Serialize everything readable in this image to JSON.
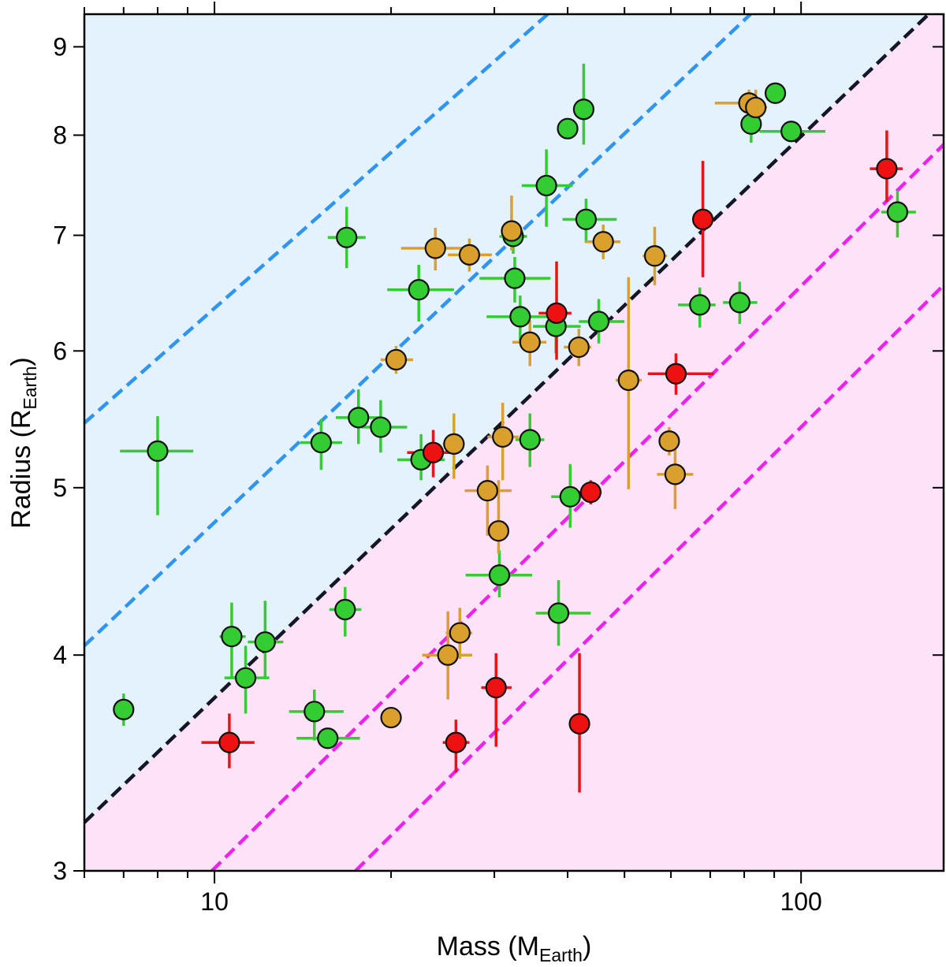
{
  "chart_data": {
    "type": "scatter",
    "title": "",
    "xlabel": "Mass (M",
    "xlabel_sub": "Earth",
    "xlabel_close": ")",
    "ylabel": "Radius (R",
    "ylabel_sub": "Earth",
    "ylabel_close": ")",
    "xscale": "log",
    "yscale": "log",
    "xlim": [
      6,
      175
    ],
    "ylim": [
      3,
      9.4
    ],
    "x_ticks": [
      10,
      100
    ],
    "x_tick_labels": [
      "10",
      "100"
    ],
    "y_ticks": [
      3,
      4,
      5,
      6,
      7,
      8,
      9
    ],
    "y_tick_labels": [
      "3",
      "4",
      "5",
      "6",
      "7",
      "8",
      "9"
    ],
    "grid": false,
    "legend": null,
    "colors": {
      "green": "#33cc33",
      "gold": "#d9a02c",
      "red": "#ee1111",
      "blue_region": "#e3f2fc",
      "pink_region": "#fde2f8",
      "blue_line": "#2f95f0",
      "magenta_line": "#ee22ee",
      "black_line": "#15152a"
    },
    "regions": [
      {
        "name": "upper",
        "color": "blue_region",
        "boundary": "upper-black-line"
      },
      {
        "name": "lower",
        "color": "pink_region",
        "boundary": "below-black-line"
      }
    ],
    "reference_lines": [
      {
        "name": "blue-line-upper",
        "color": "blue_line",
        "points": [
          [
            6,
            5.45
          ],
          [
            37,
            9.4
          ]
        ]
      },
      {
        "name": "blue-line-lower",
        "color": "blue_line",
        "points": [
          [
            6,
            4.05
          ],
          [
            82,
            9.4
          ]
        ]
      },
      {
        "name": "black-line",
        "color": "black_line",
        "points": [
          [
            6,
            3.2
          ],
          [
            165,
            9.4
          ]
        ]
      },
      {
        "name": "magenta-line-upper",
        "color": "magenta_line",
        "points": [
          [
            9.9,
            3.0
          ],
          [
            175,
            7.9
          ]
        ]
      },
      {
        "name": "magenta-line-lower",
        "color": "magenta_line",
        "points": [
          [
            17.4,
            3.0
          ],
          [
            175,
            6.55
          ]
        ]
      }
    ],
    "series": [
      {
        "name": "green",
        "color": "green",
        "points": [
          {
            "x": 7.0,
            "y": 3.72,
            "xlo": 7.0,
            "xhi": 7.0,
            "ylo": 3.64,
            "yhi": 3.8
          },
          {
            "x": 8.0,
            "y": 5.25,
            "xlo": 6.9,
            "xhi": 9.2,
            "ylo": 4.82,
            "yhi": 5.5
          },
          {
            "x": 10.7,
            "y": 4.1,
            "xlo": 10.2,
            "xhi": 11.3,
            "ylo": 3.88,
            "yhi": 4.29
          },
          {
            "x": 11.3,
            "y": 3.88,
            "xlo": 10.4,
            "xhi": 12.4,
            "ylo": 3.7,
            "yhi": 4.05
          },
          {
            "x": 12.2,
            "y": 4.07,
            "xlo": 11.4,
            "xhi": 13.1,
            "ylo": 3.88,
            "yhi": 4.3
          },
          {
            "x": 14.8,
            "y": 3.71,
            "xlo": 13.4,
            "xhi": 16.6,
            "ylo": 3.57,
            "yhi": 3.82
          },
          {
            "x": 15.2,
            "y": 5.31,
            "xlo": 14.0,
            "xhi": 16.5,
            "ylo": 5.12,
            "yhi": 5.48
          },
          {
            "x": 15.6,
            "y": 3.58,
            "xlo": 13.8,
            "xhi": 17.7,
            "ylo": 3.58,
            "yhi": 3.58
          },
          {
            "x": 16.7,
            "y": 4.25,
            "xlo": 15.7,
            "xhi": 17.8,
            "ylo": 4.1,
            "yhi": 4.38
          },
          {
            "x": 16.8,
            "y": 6.98,
            "xlo": 15.6,
            "xhi": 18.1,
            "ylo": 6.7,
            "yhi": 7.27
          },
          {
            "x": 17.6,
            "y": 5.49,
            "xlo": 16.1,
            "xhi": 19.2,
            "ylo": 5.3,
            "yhi": 5.7
          },
          {
            "x": 19.2,
            "y": 5.42,
            "xlo": 17.8,
            "xhi": 21.3,
            "ylo": 5.24,
            "yhi": 5.62
          },
          {
            "x": 22.3,
            "y": 6.51,
            "xlo": 19.7,
            "xhi": 25.6,
            "ylo": 6.24,
            "yhi": 6.73
          },
          {
            "x": 22.5,
            "y": 5.19,
            "xlo": 20.5,
            "xhi": 24.7,
            "ylo": 5.05,
            "yhi": 5.37
          },
          {
            "x": 30.6,
            "y": 4.45,
            "xlo": 26.8,
            "xhi": 34.8,
            "ylo": 4.32,
            "yhi": 4.6
          },
          {
            "x": 32.3,
            "y": 6.99,
            "xlo": 30.6,
            "xhi": 34.1,
            "ylo": 6.83,
            "yhi": 7.14
          },
          {
            "x": 32.5,
            "y": 6.61,
            "xlo": 28.3,
            "xhi": 37.4,
            "ylo": 6.4,
            "yhi": 6.8
          },
          {
            "x": 33.2,
            "y": 6.28,
            "xlo": 29.1,
            "xhi": 37.6,
            "ylo": 6.08,
            "yhi": 6.46
          },
          {
            "x": 34.5,
            "y": 5.33,
            "xlo": 32.6,
            "xhi": 36.5,
            "ylo": 5.14,
            "yhi": 5.52
          },
          {
            "x": 36.8,
            "y": 7.48,
            "xlo": 33.4,
            "xhi": 40.8,
            "ylo": 7.08,
            "yhi": 7.85
          },
          {
            "x": 38.2,
            "y": 6.2,
            "xlo": 34.9,
            "xhi": 42.1,
            "ylo": 5.98,
            "yhi": 6.38
          },
          {
            "x": 38.6,
            "y": 4.23,
            "xlo": 35.3,
            "xhi": 43.8,
            "ylo": 4.05,
            "yhi": 4.42
          },
          {
            "x": 40.0,
            "y": 8.07,
            "xlo": 40.0,
            "xhi": 40.0,
            "ylo": 8.07,
            "yhi": 8.07
          },
          {
            "x": 40.4,
            "y": 4.94,
            "xlo": 37.5,
            "xhi": 43.6,
            "ylo": 4.74,
            "yhi": 5.16
          },
          {
            "x": 42.6,
            "y": 8.28,
            "xlo": 42.6,
            "xhi": 42.6,
            "ylo": 7.9,
            "yhi": 8.8
          },
          {
            "x": 43.0,
            "y": 7.15,
            "xlo": 39.2,
            "xhi": 48.5,
            "ylo": 6.93,
            "yhi": 7.35
          },
          {
            "x": 45.2,
            "y": 6.24,
            "xlo": 41.8,
            "xhi": 50.0,
            "ylo": 6.06,
            "yhi": 6.43
          },
          {
            "x": 67.2,
            "y": 6.38,
            "xlo": 61.7,
            "xhi": 71.5,
            "ylo": 6.19,
            "yhi": 6.53
          },
          {
            "x": 78.6,
            "y": 6.4,
            "xlo": 73.6,
            "xhi": 84.2,
            "ylo": 6.22,
            "yhi": 6.58
          },
          {
            "x": 82.2,
            "y": 8.12,
            "xlo": 79.8,
            "xhi": 84.5,
            "ylo": 7.92,
            "yhi": 8.32
          },
          {
            "x": 90.4,
            "y": 8.46,
            "xlo": 86.9,
            "xhi": 92.0,
            "ylo": 8.37,
            "yhi": 8.55
          },
          {
            "x": 96.2,
            "y": 8.04,
            "xlo": 84.9,
            "xhi": 110.0,
            "ylo": 8.04,
            "yhi": 8.04
          },
          {
            "x": 146.0,
            "y": 7.22,
            "xlo": 137.0,
            "xhi": 157.0,
            "ylo": 6.98,
            "yhi": 7.43
          }
        ]
      },
      {
        "name": "gold",
        "color": "gold",
        "points": [
          {
            "x": 20.0,
            "y": 3.68,
            "xlo": 20.0,
            "xhi": 20.0,
            "ylo": 3.68,
            "yhi": 3.68
          },
          {
            "x": 20.4,
            "y": 5.93,
            "xlo": 19.2,
            "xhi": 21.8,
            "ylo": 5.82,
            "yhi": 6.04
          },
          {
            "x": 23.8,
            "y": 6.88,
            "xlo": 20.8,
            "xhi": 27.0,
            "ylo": 6.68,
            "yhi": 7.07
          },
          {
            "x": 25.0,
            "y": 4.0,
            "xlo": 22.6,
            "xhi": 27.5,
            "ylo": 3.77,
            "yhi": 4.24
          },
          {
            "x": 25.6,
            "y": 5.3,
            "xlo": 24.5,
            "xhi": 26.7,
            "ylo": 5.06,
            "yhi": 5.52
          },
          {
            "x": 26.2,
            "y": 4.12,
            "xlo": 24.8,
            "xhi": 27.5,
            "ylo": 3.98,
            "yhi": 4.26
          },
          {
            "x": 27.2,
            "y": 6.82,
            "xlo": 25.0,
            "xhi": 29.7,
            "ylo": 6.67,
            "yhi": 6.97
          },
          {
            "x": 29.2,
            "y": 4.98,
            "xlo": 26.7,
            "xhi": 32.1,
            "ylo": 4.69,
            "yhi": 5.15
          },
          {
            "x": 30.5,
            "y": 4.72,
            "xlo": 30.5,
            "xhi": 30.5,
            "ylo": 4.58,
            "yhi": 5.05
          },
          {
            "x": 31.0,
            "y": 5.35,
            "xlo": 29.2,
            "xhi": 33.0,
            "ylo": 5.05,
            "yhi": 5.6
          },
          {
            "x": 32.1,
            "y": 7.04,
            "xlo": 31.1,
            "xhi": 33.6,
            "ylo": 6.86,
            "yhi": 7.38
          },
          {
            "x": 34.5,
            "y": 6.07,
            "xlo": 32.2,
            "xhi": 36.8,
            "ylo": 5.88,
            "yhi": 6.25
          },
          {
            "x": 41.8,
            "y": 6.03,
            "xlo": 39.4,
            "xhi": 43.9,
            "ylo": 5.88,
            "yhi": 6.18
          },
          {
            "x": 46.0,
            "y": 6.94,
            "xlo": 42.9,
            "xhi": 49.2,
            "ylo": 6.78,
            "yhi": 7.1
          },
          {
            "x": 50.8,
            "y": 5.77,
            "xlo": 48.3,
            "xhi": 53.5,
            "ylo": 4.99,
            "yhi": 6.62
          },
          {
            "x": 56.3,
            "y": 6.81,
            "xlo": 53.7,
            "xhi": 59.1,
            "ylo": 6.55,
            "yhi": 7.08
          },
          {
            "x": 59.6,
            "y": 5.32,
            "xlo": 57.8,
            "xhi": 61.4,
            "ylo": 5.22,
            "yhi": 5.42
          },
          {
            "x": 61.0,
            "y": 5.09,
            "xlo": 56.8,
            "xhi": 65.5,
            "ylo": 4.86,
            "yhi": 5.32
          },
          {
            "x": 81.5,
            "y": 8.35,
            "xlo": 71.3,
            "xhi": 85.0,
            "ylo": 8.2,
            "yhi": 8.5
          },
          {
            "x": 83.7,
            "y": 8.3,
            "xlo": 80.0,
            "xhi": 87.5,
            "ylo": 8.1,
            "yhi": 8.5
          }
        ]
      },
      {
        "name": "red",
        "color": "red",
        "points": [
          {
            "x": 10.6,
            "y": 3.56,
            "xlo": 9.5,
            "xhi": 11.7,
            "ylo": 3.44,
            "yhi": 3.7
          },
          {
            "x": 23.6,
            "y": 5.24,
            "xlo": 21.3,
            "xhi": 25.8,
            "ylo": 5.07,
            "yhi": 5.4
          },
          {
            "x": 25.8,
            "y": 3.56,
            "xlo": 24.5,
            "xhi": 27.2,
            "ylo": 3.42,
            "yhi": 3.67
          },
          {
            "x": 30.2,
            "y": 3.83,
            "xlo": 28.5,
            "xhi": 32.1,
            "ylo": 3.54,
            "yhi": 4.01
          },
          {
            "x": 38.3,
            "y": 6.31,
            "xlo": 35.7,
            "xhi": 40.6,
            "ylo": 5.93,
            "yhi": 6.76
          },
          {
            "x": 41.9,
            "y": 3.65,
            "xlo": 41.9,
            "xhi": 41.9,
            "ylo": 3.33,
            "yhi": 4.01
          },
          {
            "x": 43.8,
            "y": 4.97,
            "xlo": 41.6,
            "xhi": 45.7,
            "ylo": 4.89,
            "yhi": 5.05
          },
          {
            "x": 61.2,
            "y": 5.82,
            "xlo": 54.8,
            "xhi": 71.0,
            "ylo": 5.66,
            "yhi": 5.98
          },
          {
            "x": 68.0,
            "y": 7.15,
            "xlo": 68.0,
            "xhi": 68.0,
            "ylo": 6.62,
            "yhi": 7.73
          },
          {
            "x": 140.0,
            "y": 7.65,
            "xlo": 131.0,
            "xhi": 149.0,
            "ylo": 7.32,
            "yhi": 8.05
          }
        ]
      }
    ]
  }
}
